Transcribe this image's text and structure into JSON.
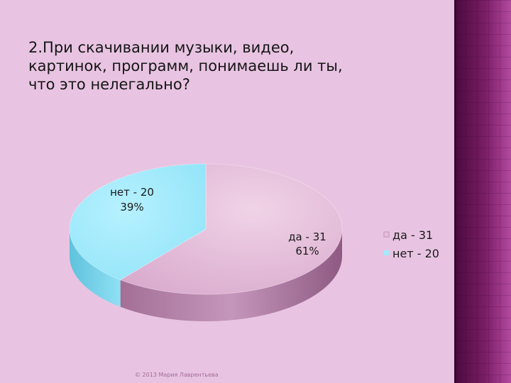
{
  "slide": {
    "title_lines": [
      "2.При скачивании музыки, видео,",
      "картинок, программ, понимаешь ли ты,",
      "что это нелегально?"
    ],
    "footer": "© 2013 Мария Лаврентьева"
  },
  "chart_data": {
    "type": "pie",
    "title": "",
    "categories": [
      "да - 31",
      "нет - 20"
    ],
    "values": [
      31,
      20
    ],
    "percent_labels": [
      "61%",
      "39%"
    ],
    "colors": [
      "#e6bfdb",
      "#a2e9fb"
    ],
    "side_colors": [
      "#b07ea4",
      "#70cfe7"
    ],
    "legend": {
      "position": "right",
      "entries": [
        "да - 31",
        "нет - 20"
      ]
    }
  }
}
